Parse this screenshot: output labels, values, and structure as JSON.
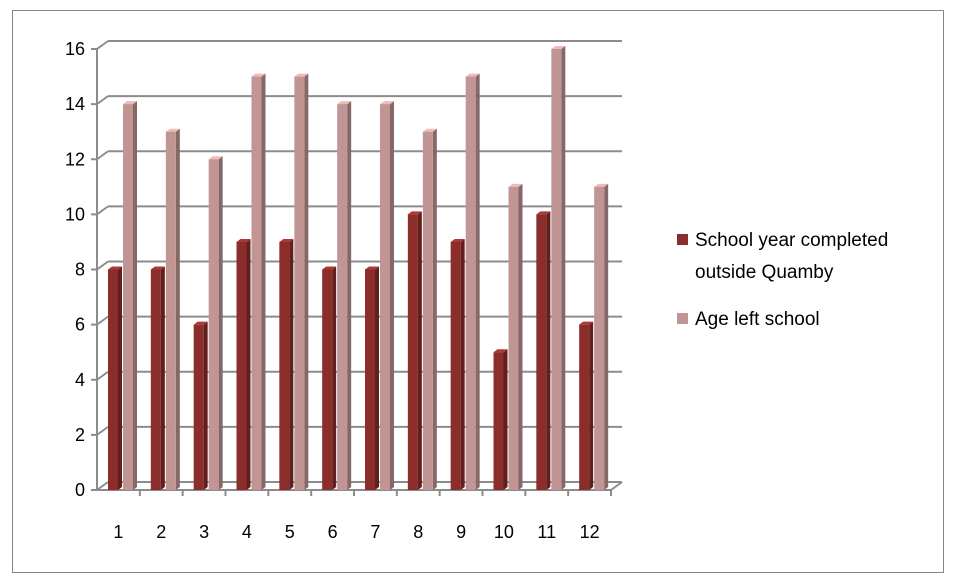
{
  "chart_data": {
    "type": "bar",
    "categories": [
      "1",
      "2",
      "3",
      "4",
      "5",
      "6",
      "7",
      "8",
      "9",
      "10",
      "11",
      "12"
    ],
    "series": [
      {
        "name": "School year completed outside Quamby",
        "color": "#8B2D2B",
        "values": [
          8,
          8,
          6,
          9,
          9,
          8,
          8,
          10,
          9,
          5,
          10,
          6
        ]
      },
      {
        "name": "Age left school",
        "color": "#C09593",
        "values": [
          14,
          13,
          12,
          15,
          15,
          14,
          14,
          13,
          15,
          11,
          16,
          11
        ]
      }
    ],
    "ylim": [
      0,
      16
    ],
    "yticks": [
      "0",
      "2",
      "4",
      "6",
      "8",
      "10",
      "12",
      "14",
      "16"
    ],
    "grid": true,
    "legend_position": "right",
    "legend_lines": [
      [
        "School year completed",
        "outside Quamby"
      ],
      [
        "Age left school"
      ]
    ]
  }
}
